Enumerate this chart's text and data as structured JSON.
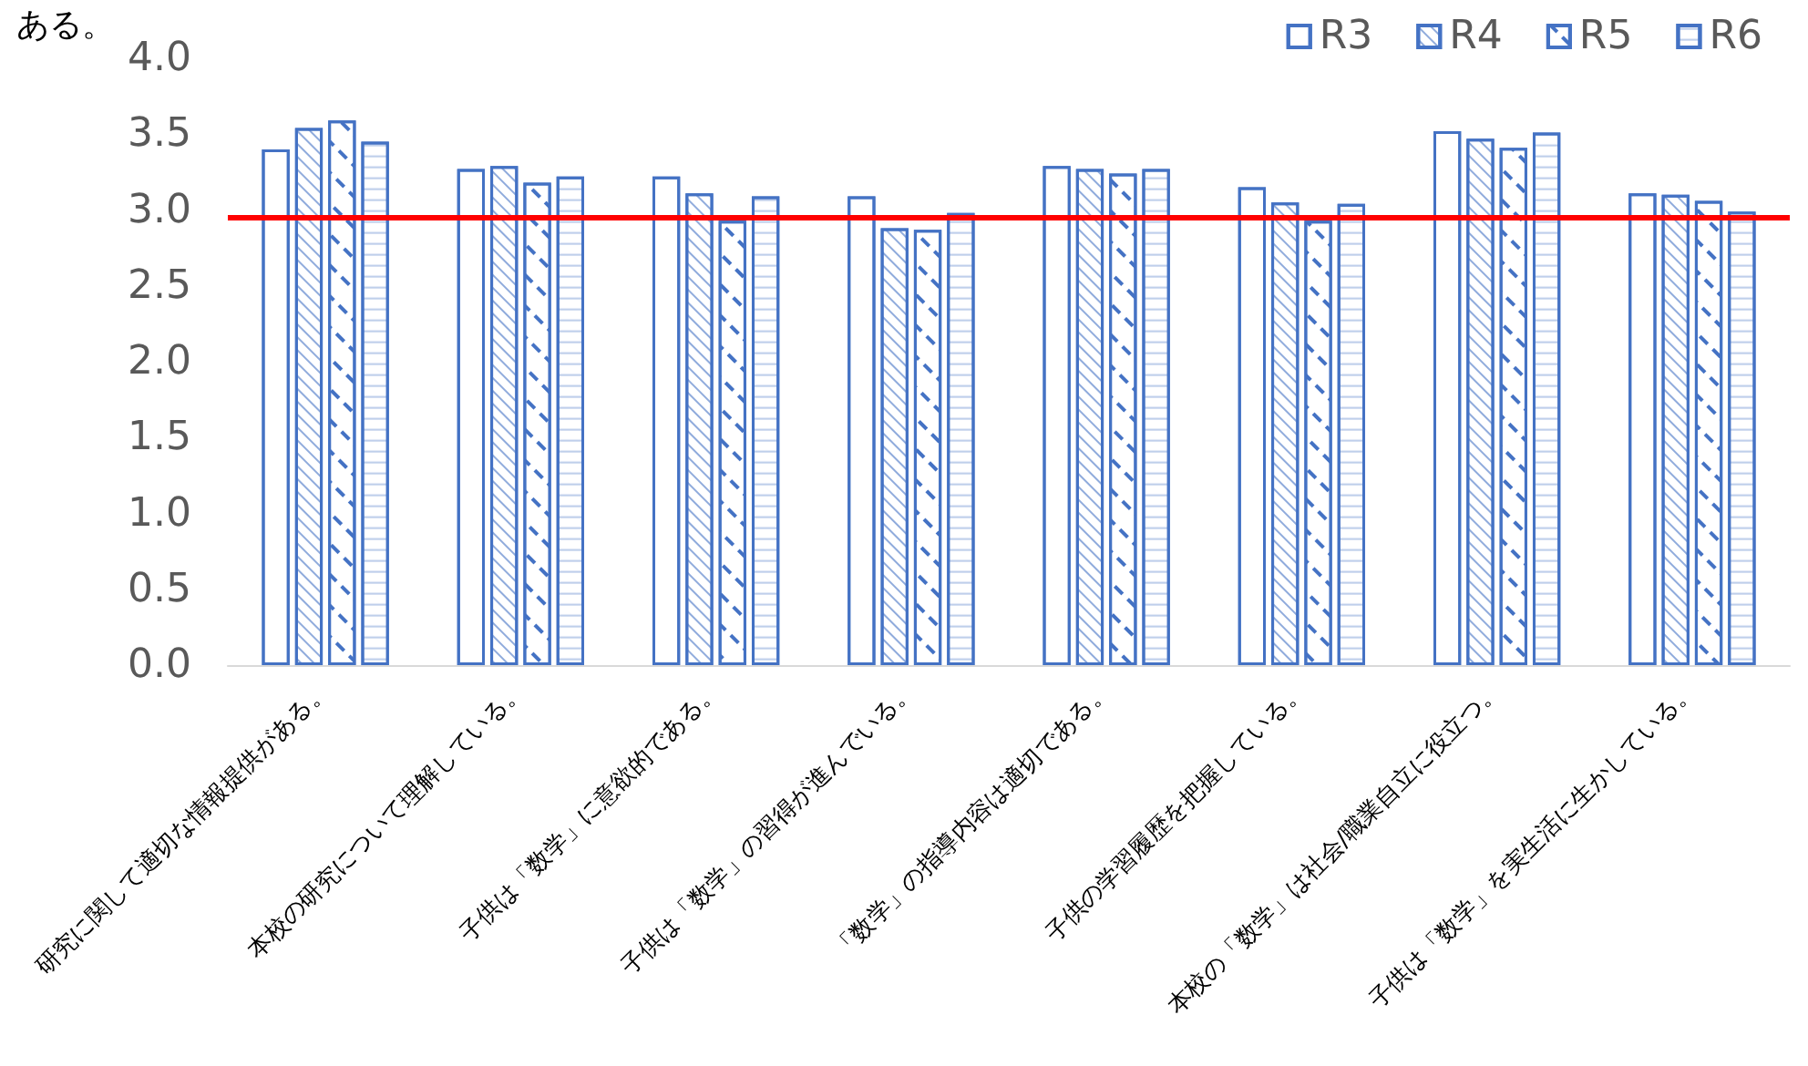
{
  "chart_data": {
    "type": "bar",
    "title": "ある。",
    "categories": [
      "研究に関して適切な情報提供がある。",
      "本校の研究について理解している。",
      "子供は「数学」に意欲的である。",
      "子供は「数学」の習得が進んでいる。",
      "「数学」の指導内容は適切である。",
      "子供の学習履歴を把握している。",
      "本校の「数学」は社会/職業自立に役立つ。",
      "子供は「数学」を実生活に生かしている。"
    ],
    "series": [
      {
        "name": "R3",
        "color": "#4472c4",
        "values": [
          3.4,
          3.27,
          3.22,
          3.09,
          3.29,
          3.15,
          3.52,
          3.11
        ]
      },
      {
        "name": "R4",
        "color": "#4472c4",
        "values": [
          3.54,
          3.29,
          3.11,
          2.88,
          3.27,
          3.05,
          3.47,
          3.1
        ]
      },
      {
        "name": "R5",
        "color": "#4472c4",
        "values": [
          3.59,
          3.18,
          2.93,
          2.87,
          3.24,
          2.93,
          3.41,
          3.06
        ]
      },
      {
        "name": "R6",
        "color": "#4472c4",
        "values": [
          3.45,
          3.22,
          3.09,
          2.98,
          3.27,
          3.04,
          3.51,
          2.99
        ]
      }
    ],
    "ylim": [
      0,
      4
    ],
    "yticks": [
      {
        "value": 0,
        "label": "0.0"
      },
      0.5,
      {
        "value": 1,
        "label": "1.0"
      },
      1.5,
      {
        "value": 2,
        "label": "2.0"
      },
      2.5,
      {
        "value": 3,
        "label": "3.0"
      },
      3.5,
      {
        "value": 4,
        "label": "4.0"
      }
    ],
    "ref_lines": [
      {
        "axis": "y",
        "value": 2.95,
        "label": null,
        "color": "#ff0000"
      }
    ],
    "grid": false,
    "legend": "top right"
  }
}
